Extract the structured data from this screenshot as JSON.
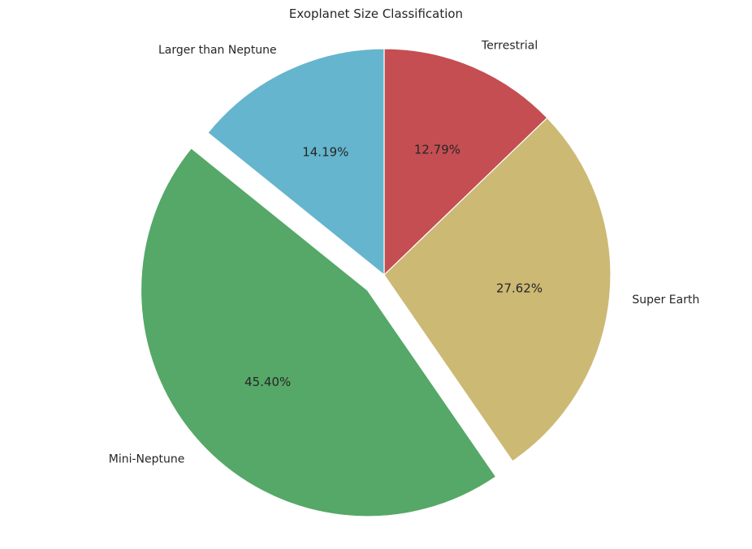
{
  "chart_data": {
    "type": "pie",
    "title": "Exoplanet Size Classification",
    "slices": [
      {
        "label": "Terrestrial",
        "value": 12.79,
        "pct_label": "12.79%",
        "color": "#c44e52",
        "explode": false
      },
      {
        "label": "Super Earth",
        "value": 27.62,
        "pct_label": "27.62%",
        "color": "#ccb974",
        "explode": false
      },
      {
        "label": "Mini-Neptune",
        "value": 45.4,
        "pct_label": "45.40%",
        "color": "#55a868",
        "explode": true
      },
      {
        "label": "Larger than Neptune",
        "value": 14.19,
        "pct_label": "14.19%",
        "color": "#64b5cd",
        "explode": false
      }
    ],
    "start_angle": "top",
    "direction": "clockwise",
    "legend": "none"
  }
}
